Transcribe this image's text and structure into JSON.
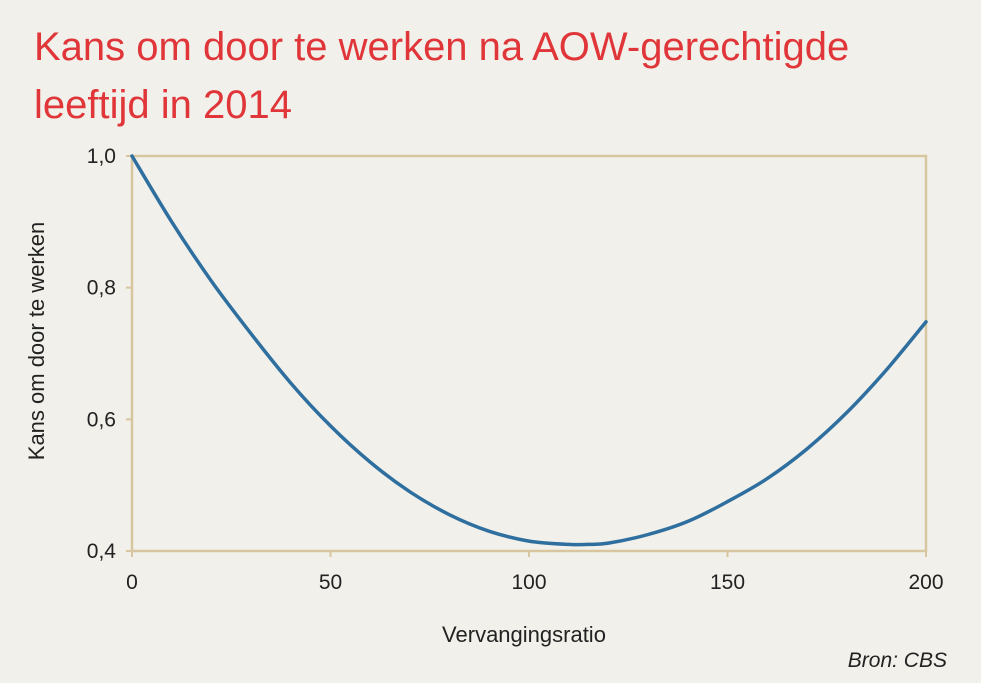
{
  "chart_data": {
    "type": "line",
    "title": "Kans om door te werken na AOW-gerechtigde leeftijd in 2014",
    "xlabel": "Vervangingsratio",
    "ylabel": "Kans om door te werken",
    "xlim": [
      0,
      200
    ],
    "ylim": [
      0.4,
      1.0
    ],
    "x_ticks": [
      0,
      50,
      100,
      150,
      200
    ],
    "x_tick_labels": [
      "0",
      "50",
      "100",
      "150",
      "200"
    ],
    "y_ticks": [
      0.4,
      0.6,
      0.8,
      1.0
    ],
    "y_tick_labels": [
      "0,4",
      "0,6",
      "0,8",
      "1,0"
    ],
    "grid": false,
    "series": [
      {
        "x": [
          0,
          10,
          20,
          30,
          40,
          50,
          60,
          70,
          80,
          90,
          100,
          110,
          115,
          120,
          130,
          140,
          150,
          160,
          170,
          180,
          190,
          200
        ],
        "y": [
          1.0,
          0.9,
          0.81,
          0.73,
          0.655,
          0.59,
          0.535,
          0.49,
          0.455,
          0.43,
          0.415,
          0.41,
          0.41,
          0.412,
          0.425,
          0.445,
          0.475,
          0.51,
          0.555,
          0.61,
          0.675,
          0.748
        ]
      }
    ],
    "source": "Bron: CBS"
  },
  "colors": {
    "title": "#e0363a",
    "line": "#2f6f9f",
    "frame": "#d8c6a0",
    "background": "#f1f0ea"
  }
}
